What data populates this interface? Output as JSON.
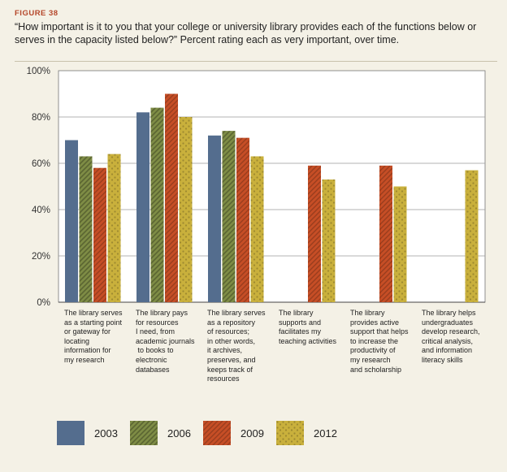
{
  "figure": {
    "label": "FIGURE 38",
    "question": "“How important is it to you that your college or university library provides each of the functions below or serves in the capacity listed below?” Percent rating each as very important, over time."
  },
  "colors": {
    "2003": "#546d8e",
    "2006": "#7e8c45",
    "2009": "#c64e26",
    "2012": "#c9b03c"
  },
  "chart_data": {
    "type": "bar",
    "title": "“How important is it to you that your college or university library provides each of the functions below or serves in the capacity listed below?” Percent rating each as very important, over time.",
    "ylabel": "",
    "xlabel": "",
    "ylim": [
      0,
      100
    ],
    "yticks": [
      0,
      20,
      40,
      60,
      80,
      100
    ],
    "ytick_labels": [
      "0%",
      "20%",
      "40%",
      "60%",
      "80%",
      "100%"
    ],
    "grid": true,
    "legend_position": "bottom",
    "categories": [
      [
        "The library serves",
        "as a starting point",
        "or gateway for",
        "locating",
        "information for",
        "my research"
      ],
      [
        "The library pays",
        "for resources",
        "I need, from",
        "academic journals",
        " to books to",
        "electronic",
        "databases"
      ],
      [
        "The library serves",
        "as a repository",
        "of resources;",
        "in other words,",
        "it archives,",
        "preserves, and",
        "keeps track of",
        "resources"
      ],
      [
        "The library",
        "supports and",
        "facilitates my",
        "teaching activities"
      ],
      [
        "The library",
        "provides active",
        "support that helps",
        "to increase the",
        "productivity of",
        "my research",
        "and scholarship"
      ],
      [
        "The library helps",
        "undergraduates",
        "develop research,",
        "critical analysis,",
        "and information",
        "literacy skills"
      ]
    ],
    "series": [
      {
        "name": "2003",
        "values": [
          70,
          82,
          72,
          null,
          null,
          null
        ]
      },
      {
        "name": "2006",
        "values": [
          63,
          84,
          74,
          null,
          null,
          null
        ]
      },
      {
        "name": "2009",
        "values": [
          58,
          90,
          71,
          59,
          59,
          null
        ]
      },
      {
        "name": "2012",
        "values": [
          64,
          80,
          63,
          53,
          50,
          57
        ]
      }
    ]
  }
}
